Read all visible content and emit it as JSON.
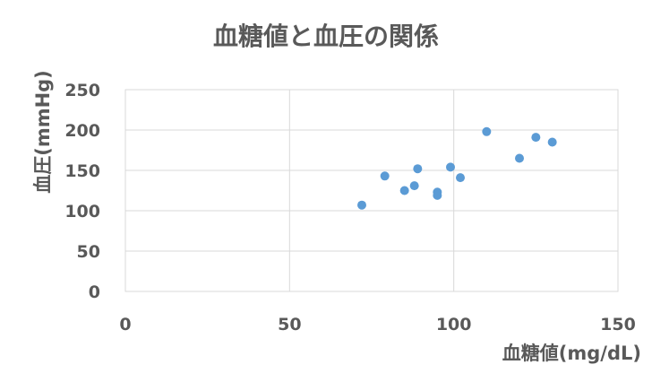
{
  "chart_data": {
    "type": "scatter",
    "title": "血糖値と血圧の関係",
    "xlabel": "血糖値(mg/dL)",
    "ylabel": "血圧(mmHg)",
    "xlim": [
      0,
      150
    ],
    "ylim": [
      0,
      250
    ],
    "xticks": [
      "0",
      "50",
      "100",
      "150"
    ],
    "yticks": [
      "0",
      "50",
      "100",
      "150",
      "200",
      "250"
    ],
    "grid": true,
    "legend": "none",
    "series": [
      {
        "color": "#5b9bd5",
        "points": [
          {
            "x": 72,
            "y": 107
          },
          {
            "x": 79,
            "y": 143
          },
          {
            "x": 85,
            "y": 125
          },
          {
            "x": 88,
            "y": 131
          },
          {
            "x": 89,
            "y": 152
          },
          {
            "x": 95,
            "y": 123
          },
          {
            "x": 95,
            "y": 119
          },
          {
            "x": 99,
            "y": 154
          },
          {
            "x": 102,
            "y": 141
          },
          {
            "x": 110,
            "y": 198
          },
          {
            "x": 120,
            "y": 165
          },
          {
            "x": 125,
            "y": 191
          },
          {
            "x": 130,
            "y": 185
          }
        ]
      }
    ]
  }
}
